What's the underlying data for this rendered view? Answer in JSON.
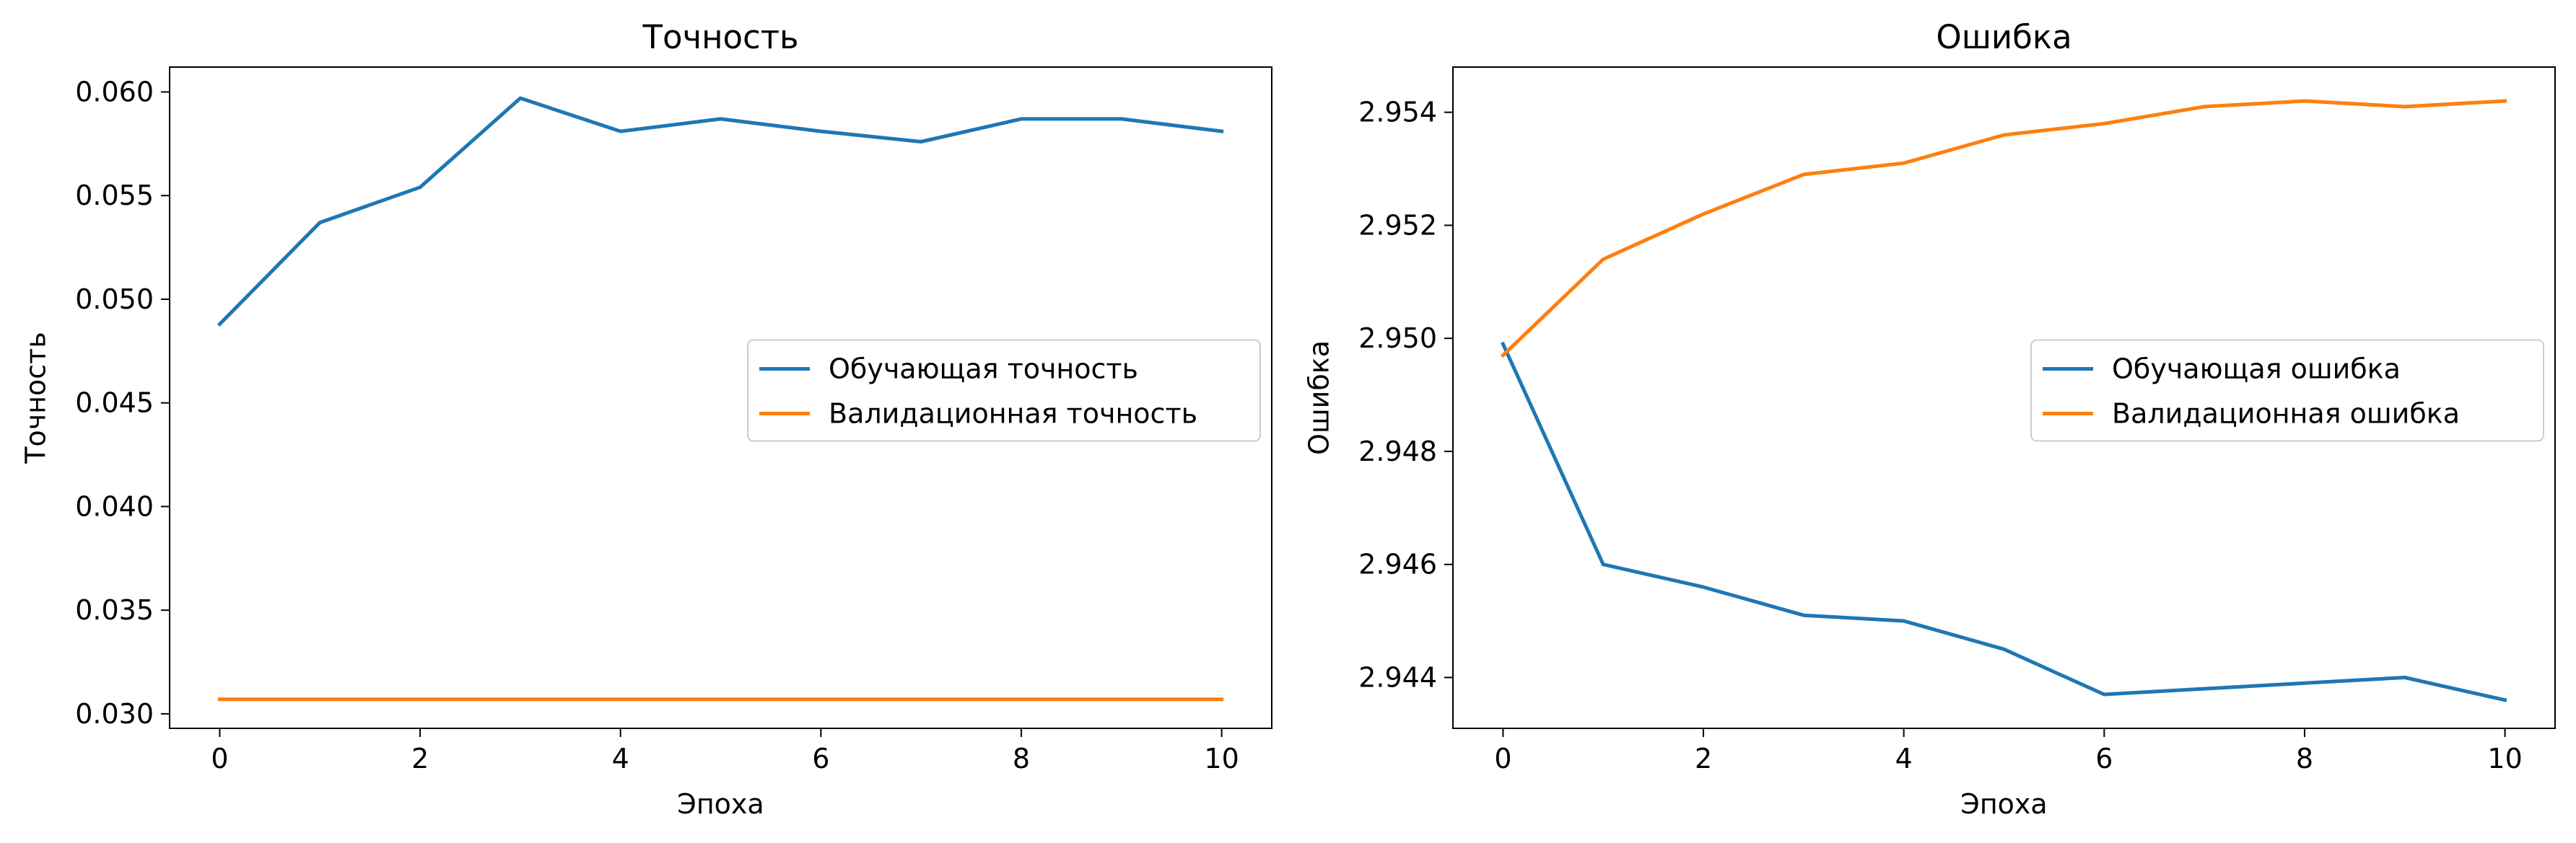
{
  "colors": {
    "train": "#1f77b4",
    "val": "#ff7f0e"
  },
  "chart_data": [
    {
      "type": "line",
      "title": "Точность",
      "xlabel": "Эпоха",
      "ylabel": "Точность",
      "xlim": [
        -0.5,
        10.5
      ],
      "ylim": [
        0.0293,
        0.0612
      ],
      "xticks": [
        0,
        2,
        4,
        6,
        8,
        10
      ],
      "xtick_labels": [
        "0",
        "2",
        "4",
        "6",
        "8",
        "10"
      ],
      "yticks": [
        0.03,
        0.035,
        0.04,
        0.045,
        0.05,
        0.055,
        0.06
      ],
      "ytick_labels": [
        "0.030",
        "0.035",
        "0.040",
        "0.045",
        "0.050",
        "0.055",
        "0.060"
      ],
      "legend_position": "center-right",
      "x": [
        0,
        1,
        2,
        3,
        4,
        5,
        6,
        7,
        8,
        9,
        10
      ],
      "series": [
        {
          "name": "Обучающая точность",
          "color": "#1f77b4",
          "values": [
            0.0488,
            0.0537,
            0.0554,
            0.0597,
            0.0581,
            0.0587,
            0.0581,
            0.0576,
            0.0587,
            0.0587,
            0.0581
          ]
        },
        {
          "name": "Валидационная точность",
          "color": "#ff7f0e",
          "values": [
            0.0307,
            0.0307,
            0.0307,
            0.0307,
            0.0307,
            0.0307,
            0.0307,
            0.0307,
            0.0307,
            0.0307,
            0.0307
          ]
        }
      ]
    },
    {
      "type": "line",
      "title": "Ошибка",
      "xlabel": "Эпоха",
      "ylabel": "Ошибка",
      "xlim": [
        -0.5,
        10.5
      ],
      "ylim": [
        2.9431,
        2.9548
      ],
      "xticks": [
        0,
        2,
        4,
        6,
        8,
        10
      ],
      "xtick_labels": [
        "0",
        "2",
        "4",
        "6",
        "8",
        "10"
      ],
      "yticks": [
        2.944,
        2.946,
        2.948,
        2.95,
        2.952,
        2.954
      ],
      "ytick_labels": [
        "2.944",
        "2.946",
        "2.948",
        "2.950",
        "2.952",
        "2.954"
      ],
      "legend_position": "center-right",
      "x": [
        0,
        1,
        2,
        3,
        4,
        5,
        6,
        7,
        8,
        9,
        10
      ],
      "series": [
        {
          "name": "Обучающая ошибка",
          "color": "#1f77b4",
          "values": [
            2.9499,
            2.946,
            2.9456,
            2.9451,
            2.945,
            2.9445,
            2.9437,
            2.9438,
            2.9439,
            2.944,
            2.9436
          ]
        },
        {
          "name": "Валидационная ошибка",
          "color": "#ff7f0e",
          "values": [
            2.9497,
            2.9514,
            2.9522,
            2.9529,
            2.9531,
            2.9536,
            2.9538,
            2.9541,
            2.9542,
            2.9541,
            2.9542
          ]
        }
      ]
    }
  ]
}
